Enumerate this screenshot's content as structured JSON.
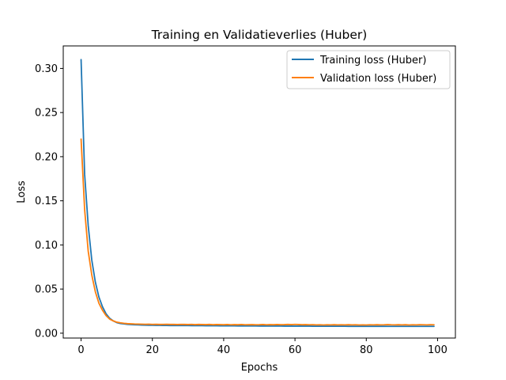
{
  "chart_data": {
    "type": "line",
    "title": "Training en Validatieverlies (Huber)",
    "xlabel": "Epochs",
    "ylabel": "Loss",
    "xlim": [
      -5,
      105
    ],
    "ylim": [
      -0.0055,
      0.3255
    ],
    "xticks": [
      0,
      20,
      40,
      60,
      80,
      100
    ],
    "yticks": [
      0.0,
      0.05,
      0.1,
      0.15,
      0.2,
      0.25,
      0.3
    ],
    "ytick_labels": [
      "0.00",
      "0.05",
      "0.10",
      "0.15",
      "0.20",
      "0.25",
      "0.30"
    ],
    "grid": false,
    "legend_position": "top-right",
    "series": [
      {
        "name": "Training loss (Huber)",
        "color": "#1f77b4",
        "x": [
          0,
          1,
          2,
          3,
          4,
          5,
          6,
          7,
          8,
          9,
          10,
          11,
          12,
          13,
          14,
          15,
          16,
          17,
          18,
          19,
          20,
          21,
          22,
          23,
          24,
          25,
          26,
          27,
          28,
          29,
          30,
          31,
          32,
          33,
          34,
          35,
          36,
          37,
          38,
          39,
          40,
          41,
          42,
          43,
          44,
          45,
          46,
          47,
          48,
          49,
          50,
          51,
          52,
          53,
          54,
          55,
          56,
          57,
          58,
          59,
          60,
          61,
          62,
          63,
          64,
          65,
          66,
          67,
          68,
          69,
          70,
          71,
          72,
          73,
          74,
          75,
          76,
          77,
          78,
          79,
          80,
          81,
          82,
          83,
          84,
          85,
          86,
          87,
          88,
          89,
          90,
          91,
          92,
          93,
          94,
          95,
          96,
          97,
          98,
          99
        ],
        "values": [
          0.31,
          0.18,
          0.122,
          0.083,
          0.058,
          0.041,
          0.03,
          0.022,
          0.017,
          0.014,
          0.012,
          0.011,
          0.0105,
          0.01,
          0.0098,
          0.0096,
          0.0094,
          0.0092,
          0.0091,
          0.009,
          0.009,
          0.0089,
          0.0089,
          0.0088,
          0.0088,
          0.0087,
          0.0087,
          0.0087,
          0.0086,
          0.0086,
          0.0086,
          0.0085,
          0.0085,
          0.0085,
          0.0085,
          0.0084,
          0.0084,
          0.0084,
          0.0084,
          0.0083,
          0.0083,
          0.0083,
          0.0083,
          0.0083,
          0.0082,
          0.0082,
          0.0082,
          0.0082,
          0.0082,
          0.0082,
          0.0081,
          0.0081,
          0.0081,
          0.0081,
          0.0081,
          0.0081,
          0.0081,
          0.008,
          0.008,
          0.008,
          0.008,
          0.008,
          0.008,
          0.008,
          0.008,
          0.0079,
          0.0079,
          0.0079,
          0.0079,
          0.0079,
          0.0079,
          0.0079,
          0.0079,
          0.0079,
          0.0079,
          0.0078,
          0.0078,
          0.0078,
          0.0078,
          0.0078,
          0.0078,
          0.0078,
          0.0078,
          0.0078,
          0.0078,
          0.0078,
          0.0077,
          0.0077,
          0.0077,
          0.0077,
          0.0077,
          0.0077,
          0.0077,
          0.0077,
          0.0077,
          0.0077,
          0.0077,
          0.0077,
          0.0077,
          0.0077
        ]
      },
      {
        "name": "Validation loss (Huber)",
        "color": "#ff7f0e",
        "x": [
          0,
          1,
          2,
          3,
          4,
          5,
          6,
          7,
          8,
          9,
          10,
          11,
          12,
          13,
          14,
          15,
          16,
          17,
          18,
          19,
          20,
          21,
          22,
          23,
          24,
          25,
          26,
          27,
          28,
          29,
          30,
          31,
          32,
          33,
          34,
          35,
          36,
          37,
          38,
          39,
          40,
          41,
          42,
          43,
          44,
          45,
          46,
          47,
          48,
          49,
          50,
          51,
          52,
          53,
          54,
          55,
          56,
          57,
          58,
          59,
          60,
          61,
          62,
          63,
          64,
          65,
          66,
          67,
          68,
          69,
          70,
          71,
          72,
          73,
          74,
          75,
          76,
          77,
          78,
          79,
          80,
          81,
          82,
          83,
          84,
          85,
          86,
          87,
          88,
          89,
          90,
          91,
          92,
          93,
          94,
          95,
          96,
          97,
          98,
          99
        ],
        "values": [
          0.22,
          0.14,
          0.093,
          0.066,
          0.047,
          0.034,
          0.026,
          0.02,
          0.016,
          0.014,
          0.0125,
          0.0118,
          0.0112,
          0.0108,
          0.0106,
          0.0104,
          0.0103,
          0.0102,
          0.0101,
          0.0102,
          0.01,
          0.0101,
          0.0099,
          0.01,
          0.0101,
          0.0099,
          0.01,
          0.0098,
          0.01,
          0.0099,
          0.0098,
          0.01,
          0.0097,
          0.0099,
          0.0098,
          0.0097,
          0.0099,
          0.0096,
          0.0098,
          0.0097,
          0.0096,
          0.0098,
          0.0095,
          0.0097,
          0.0096,
          0.0098,
          0.0095,
          0.0096,
          0.0097,
          0.0095,
          0.0096,
          0.0098,
          0.0095,
          0.0097,
          0.0096,
          0.0098,
          0.0096,
          0.0097,
          0.0099,
          0.0097,
          0.01,
          0.0098,
          0.0096,
          0.0097,
          0.0095,
          0.0096,
          0.0094,
          0.0095,
          0.0093,
          0.0095,
          0.0094,
          0.0096,
          0.0094,
          0.0095,
          0.0094,
          0.0096,
          0.0094,
          0.0095,
          0.0093,
          0.0094,
          0.0093,
          0.0095,
          0.0094,
          0.0096,
          0.0094,
          0.0095,
          0.0097,
          0.0095,
          0.0094,
          0.0096,
          0.0094,
          0.0096,
          0.0093,
          0.0095,
          0.0094,
          0.0096,
          0.0095,
          0.0094,
          0.0096,
          0.0095
        ]
      }
    ]
  }
}
